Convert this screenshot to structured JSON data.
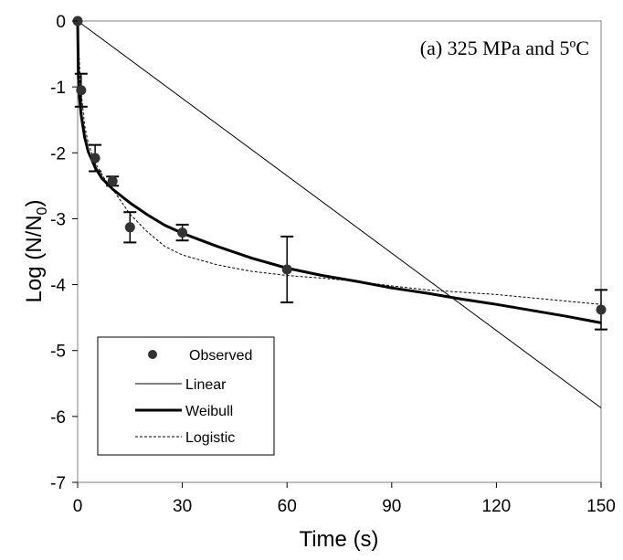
{
  "chart_data": {
    "type": "line",
    "annotation": "(a) 325 MPa and 5ºC",
    "xlabel": "Time (s)",
    "ylabel_main": "Log (N/N",
    "ylabel_sub": "0",
    "ylabel_end": ")",
    "xlim": [
      0,
      150
    ],
    "ylim": [
      -7,
      0
    ],
    "xticks": [
      0,
      30,
      60,
      90,
      120,
      150
    ],
    "yticks": [
      0,
      -1,
      -2,
      -3,
      -4,
      -5,
      -6,
      -7
    ],
    "grid": false,
    "legend_position": "bottom-left",
    "series": [
      {
        "name": "Observed",
        "style": "markers-with-error-bars",
        "x": [
          0,
          1,
          5,
          10,
          15,
          30,
          60,
          150
        ],
        "values": [
          0,
          -1.05,
          -2.08,
          -2.43,
          -3.13,
          -3.21,
          -3.77,
          -4.38
        ],
        "error": [
          0,
          0.25,
          0.2,
          0.07,
          0.23,
          0.12,
          0.5,
          0.3
        ]
      },
      {
        "name": "Linear",
        "style": "thin-solid",
        "x": [
          0,
          150
        ],
        "values": [
          0,
          -5.87
        ]
      },
      {
        "name": "Weibull",
        "style": "thick-solid",
        "x": [
          0,
          0.2,
          0.5,
          1,
          2,
          3,
          5,
          7,
          10,
          15,
          20,
          25,
          30,
          40,
          50,
          60,
          70,
          80,
          90,
          100,
          110,
          120,
          130,
          140,
          150
        ],
        "values": [
          0,
          -0.85,
          -1.15,
          -1.42,
          -1.76,
          -1.98,
          -2.22,
          -2.39,
          -2.55,
          -2.76,
          -2.94,
          -3.1,
          -3.22,
          -3.42,
          -3.6,
          -3.75,
          -3.86,
          -3.95,
          -4.05,
          -4.13,
          -4.22,
          -4.3,
          -4.39,
          -4.48,
          -4.58
        ]
      },
      {
        "name": "Logistic",
        "style": "dotted",
        "x": [
          0,
          0.3,
          0.6,
          1,
          2,
          3,
          5,
          8,
          10,
          15,
          20,
          25,
          30,
          40,
          50,
          60,
          70,
          80,
          90,
          100,
          120,
          150
        ],
        "values": [
          0,
          -0.35,
          -0.75,
          -1.08,
          -1.58,
          -1.85,
          -2.15,
          -2.42,
          -2.55,
          -2.93,
          -3.2,
          -3.42,
          -3.55,
          -3.7,
          -3.8,
          -3.86,
          -3.9,
          -3.95,
          -4.02,
          -4.08,
          -4.15,
          -4.3
        ]
      }
    ]
  }
}
